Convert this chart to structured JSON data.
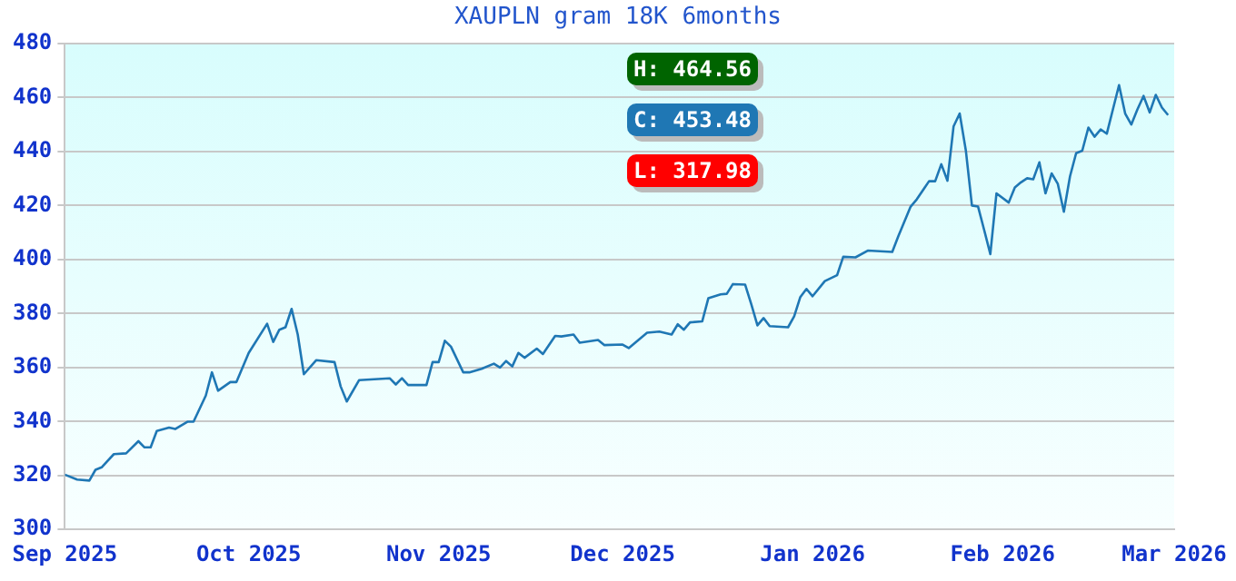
{
  "chart_data": {
    "type": "line",
    "title": "XAUPLN gram 18K 6months",
    "annotations": [
      "H: 464.56",
      "C: 453.48",
      "L: 317.98"
    ],
    "x": [
      "2025-09-01",
      "2025-09-03",
      "2025-09-05",
      "2025-09-06",
      "2025-09-07",
      "2025-09-09",
      "2025-09-11",
      "2025-09-13",
      "2025-09-14",
      "2025-09-15",
      "2025-09-16",
      "2025-09-18",
      "2025-09-19",
      "2025-09-21",
      "2025-09-22",
      "2025-09-24",
      "2025-09-25",
      "2025-09-26",
      "2025-09-28",
      "2025-09-29",
      "2025-10-01",
      "2025-10-04",
      "2025-10-05",
      "2025-10-06",
      "2025-10-07",
      "2025-10-08",
      "2025-10-09",
      "2025-10-10",
      "2025-10-12",
      "2025-10-15",
      "2025-10-16",
      "2025-10-17",
      "2025-10-19",
      "2025-10-24",
      "2025-10-25",
      "2025-10-26",
      "2025-10-27",
      "2025-10-30",
      "2025-10-31",
      "2025-11-01",
      "2025-11-02",
      "2025-11-03",
      "2025-11-05",
      "2025-11-06",
      "2025-11-08",
      "2025-11-10",
      "2025-11-11",
      "2025-11-12",
      "2025-11-13",
      "2025-11-14",
      "2025-11-15",
      "2025-11-17",
      "2025-11-18",
      "2025-11-20",
      "2025-11-21",
      "2025-11-23",
      "2025-11-24",
      "2025-11-27",
      "2025-11-28",
      "2025-12-01",
      "2025-12-02",
      "2025-12-05",
      "2025-12-07",
      "2025-12-09",
      "2025-12-10",
      "2025-12-11",
      "2025-12-12",
      "2025-12-14",
      "2025-12-15",
      "2025-12-17",
      "2025-12-18",
      "2025-12-19",
      "2025-12-21",
      "2025-12-22",
      "2025-12-23",
      "2025-12-24",
      "2025-12-25",
      "2025-12-28",
      "2025-12-29",
      "2025-12-30",
      "2025-12-31",
      "2026-01-01",
      "2026-01-03",
      "2026-01-05",
      "2026-01-06",
      "2026-01-08",
      "2026-01-10",
      "2026-01-14",
      "2026-01-15",
      "2026-01-17",
      "2026-01-18",
      "2026-01-20",
      "2026-01-21",
      "2026-01-22",
      "2026-01-23",
      "2026-01-24",
      "2026-01-25",
      "2026-01-26",
      "2026-01-27",
      "2026-01-28",
      "2026-01-29",
      "2026-01-30",
      "2026-01-31",
      "2026-02-02",
      "2026-02-03",
      "2026-02-04",
      "2026-02-05",
      "2026-02-06",
      "2026-02-07",
      "2026-02-08",
      "2026-02-09",
      "2026-02-10",
      "2026-02-11",
      "2026-02-12",
      "2026-02-13",
      "2026-02-14",
      "2026-02-15",
      "2026-02-16",
      "2026-02-17",
      "2026-02-18",
      "2026-02-19",
      "2026-02-20",
      "2026-02-21",
      "2026-02-22",
      "2026-02-23",
      "2026-02-24",
      "2026-02-25",
      "2026-02-26",
      "2026-02-27",
      "2026-02-28"
    ],
    "series": [
      {
        "color": "#1f77b4",
        "values": [
          320.3,
          318.5,
          318.1,
          322.1,
          323.0,
          327.9,
          328.2,
          332.7,
          330.4,
          330.4,
          336.5,
          337.7,
          337.2,
          339.9,
          339.9,
          349.6,
          358.2,
          351.4,
          354.6,
          354.6,
          365.4,
          376.2,
          369.5,
          374.0,
          374.9,
          381.7,
          372.2,
          357.5,
          362.7,
          362.0,
          353.0,
          347.4,
          355.3,
          356.0,
          353.7,
          356.0,
          353.5,
          353.5,
          362.0,
          362.0,
          369.9,
          367.7,
          358.2,
          358.2,
          359.5,
          361.4,
          360.0,
          362.4,
          360.4,
          365.4,
          363.6,
          367.0,
          365.0,
          371.7,
          371.5,
          372.2,
          369.2,
          370.2,
          368.3,
          368.5,
          367.2,
          372.9,
          373.3,
          372.2,
          376.0,
          374.0,
          376.7,
          377.1,
          385.7,
          387.1,
          387.3,
          390.9,
          390.7,
          383.4,
          375.6,
          378.3,
          375.3,
          374.9,
          379.0,
          386.1,
          389.1,
          386.4,
          392.0,
          394.2,
          401.0,
          400.8,
          403.3,
          402.8,
          408.7,
          419.6,
          422.3,
          429.0,
          429.0,
          435.3,
          429.2,
          449.3,
          454.1,
          440.5,
          420.0,
          419.6,
          410.9,
          402.0,
          424.5,
          421.1,
          426.7,
          428.6,
          430.1,
          429.7,
          436.0,
          424.5,
          431.9,
          428.1,
          417.7,
          430.8,
          439.4,
          440.3,
          448.9,
          445.5,
          448.2,
          446.6,
          455.6,
          464.6,
          454.1,
          450.0,
          455.6,
          460.6,
          454.5,
          461.0,
          456.3,
          453.5
        ]
      }
    ],
    "xlim": [
      "2025-09-01",
      "2026-03-01"
    ],
    "xticks": [
      {
        "value": "2025-09-01",
        "label": "Sep 2025"
      },
      {
        "value": "2025-10-01",
        "label": "Oct 2025"
      },
      {
        "value": "2025-11-01",
        "label": "Nov 2025"
      },
      {
        "value": "2025-12-01",
        "label": "Dec 2025"
      },
      {
        "value": "2026-01-01",
        "label": "Jan 2026"
      },
      {
        "value": "2026-02-01",
        "label": "Feb 2026"
      },
      {
        "value": "2026-03-01",
        "label": "Mar 2026"
      }
    ],
    "ylim": [
      300,
      480
    ],
    "yticks": [
      300,
      320,
      340,
      360,
      380,
      400,
      420,
      440,
      460,
      480
    ],
    "grid": "y",
    "marker": "none",
    "line_style": "solid",
    "legend": false
  }
}
